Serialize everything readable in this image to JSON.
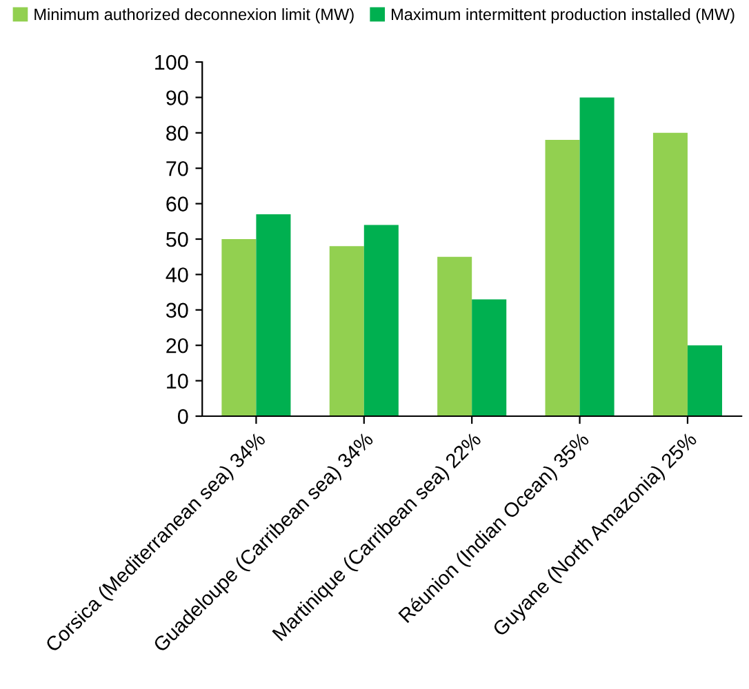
{
  "chart_data": {
    "type": "bar",
    "categories": [
      "Corsica (Mediterranean sea) 34%",
      "Guadeloupe (Carribean sea) 34%",
      "Martinique (Carribean sea) 22%",
      "Réunion (Indian Ocean) 35%",
      "Guyane (North Amazonia) 25%"
    ],
    "series": [
      {
        "name": "Minimum authorized deconnexion limit (MW)",
        "color": "#92d050",
        "values": [
          50,
          48,
          45,
          78,
          80
        ]
      },
      {
        "name": "Maximum intermittent production installed (MW)",
        "color": "#00b050",
        "values": [
          57,
          54,
          33,
          90,
          20
        ]
      }
    ],
    "ylim": [
      0,
      100
    ],
    "yticks": [
      0,
      10,
      20,
      30,
      40,
      50,
      60,
      70,
      80,
      90,
      100
    ],
    "grid": false,
    "legend": "top"
  }
}
